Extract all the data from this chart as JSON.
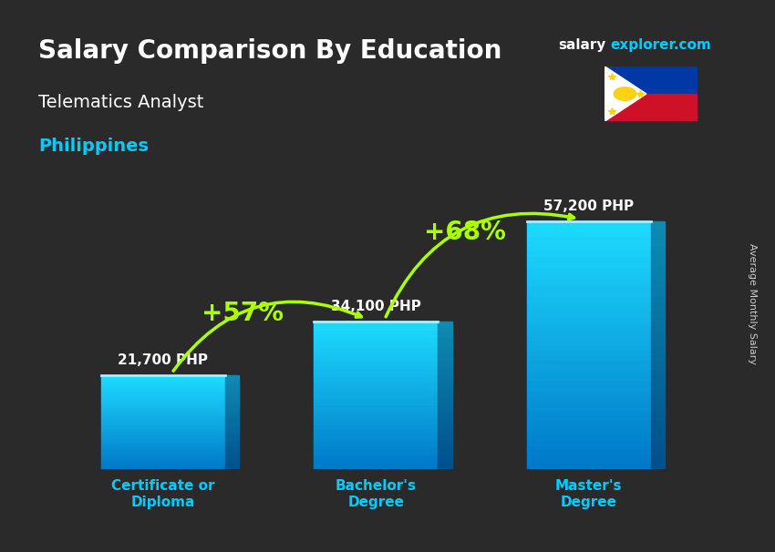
{
  "title_main": "Salary Comparison By Education",
  "subtitle_job": "Telematics Analyst",
  "subtitle_country": "Philippines",
  "watermark": "salaryexplorer.com",
  "ylabel": "Average Monthly Salary",
  "categories": [
    "Certificate or\nDiploma",
    "Bachelor's\nDegree",
    "Master's\nDegree"
  ],
  "values": [
    21700,
    34100,
    57200
  ],
  "value_labels": [
    "21,700 PHP",
    "34,100 PHP",
    "57,200 PHP"
  ],
  "bar_color_top": "#00d4ff",
  "bar_color_bottom": "#0077cc",
  "bar_color_face": "#00aaee",
  "pct_labels": [
    "+57%",
    "+68%"
  ],
  "pct_color": "#aaff00",
  "background_color": "#1a1a2e",
  "text_color_white": "#ffffff",
  "text_color_cyan": "#00ccff",
  "ylim": [
    0,
    70000
  ]
}
